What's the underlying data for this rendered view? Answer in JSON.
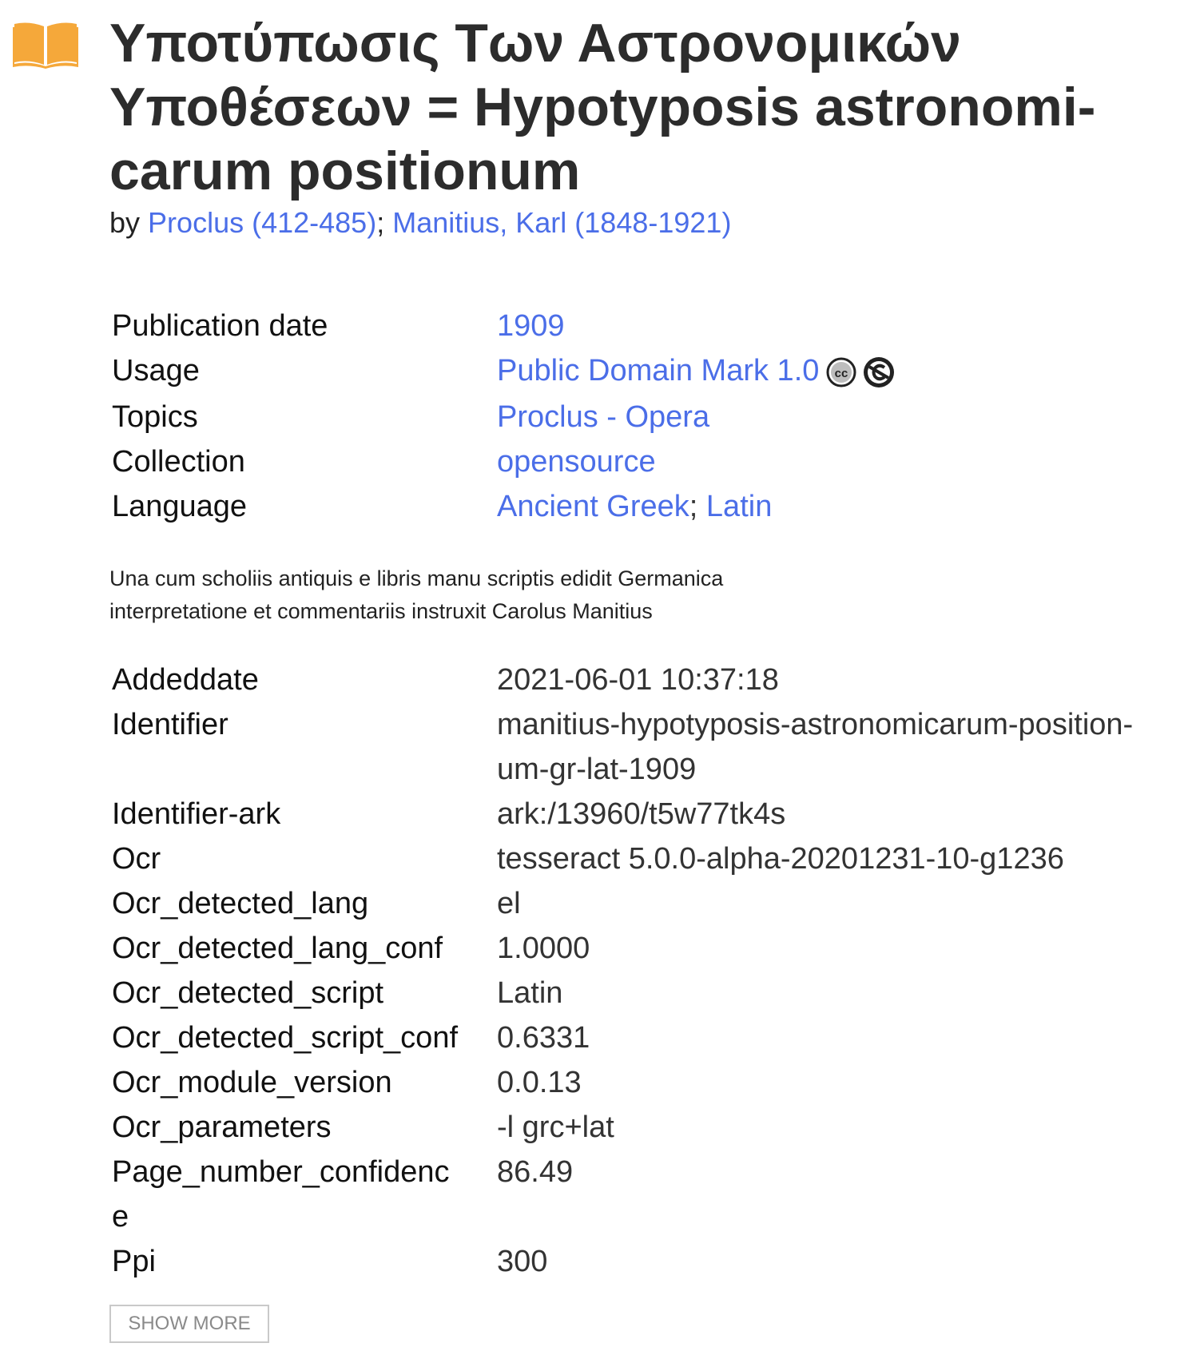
{
  "icons": {
    "book": "book-icon",
    "cc": "creative-commons-icon",
    "pd": "public-domain-icon",
    "book_color": "#f5a83a"
  },
  "title": {
    "line1": "Υποτύπωσις Των Αστρονομικών",
    "line2": "Υποθέσεων = Hypotyposis astronomi-",
    "line3": "carum positionum"
  },
  "byline": {
    "prefix": "by",
    "authors": [
      "Proclus (412-485)",
      "Manitius, Karl (1848-1921)"
    ],
    "separator": ";"
  },
  "metadata_top": {
    "publication_date": {
      "label": "Publication date",
      "value": "1909"
    },
    "usage": {
      "label": "Usage",
      "value": "Public Domain Mark 1.0"
    },
    "topics": {
      "label": "Topics",
      "value": "Proclus - Opera"
    },
    "collection": {
      "label": "Collection",
      "value": "opensource"
    },
    "language": {
      "label": "Language",
      "values": [
        "Ancient Greek",
        "Latin"
      ],
      "separator": ";"
    }
  },
  "description": {
    "line1": "Una cum scholiis antiquis e libris manu scriptis edidit Germanica",
    "line2": "interpretatione et commentariis instruxit Carolus Manitius"
  },
  "metadata_bottom": [
    {
      "label": "Addeddate",
      "value": "2021-06-01 10:37:18"
    },
    {
      "label": "Identifier",
      "value": "manitius-hypotyposis-astronomicarum-position-",
      "value2": "um-gr-lat-1909"
    },
    {
      "label": "Identifier-ark",
      "value": "ark:/13960/t5w77tk4s"
    },
    {
      "label": "Ocr",
      "value": "tesseract 5.0.0-alpha-20201231-10-g1236"
    },
    {
      "label": "Ocr_detected_lang",
      "value": "el"
    },
    {
      "label": "Ocr_detected_lang_conf",
      "value": "1.0000"
    },
    {
      "label": "Ocr_detected_script",
      "value": "Latin"
    },
    {
      "label": "Ocr_detected_script_conf",
      "value": "0.6331"
    },
    {
      "label": "Ocr_module_version",
      "value": "0.0.13"
    },
    {
      "label": "Ocr_parameters",
      "value": "-l grc+lat"
    },
    {
      "label": "Page_number_confidenc",
      "label2": "e",
      "value": "86.49"
    },
    {
      "label": "Ppi",
      "value": "300"
    }
  ],
  "show_more_label": "SHOW MORE"
}
